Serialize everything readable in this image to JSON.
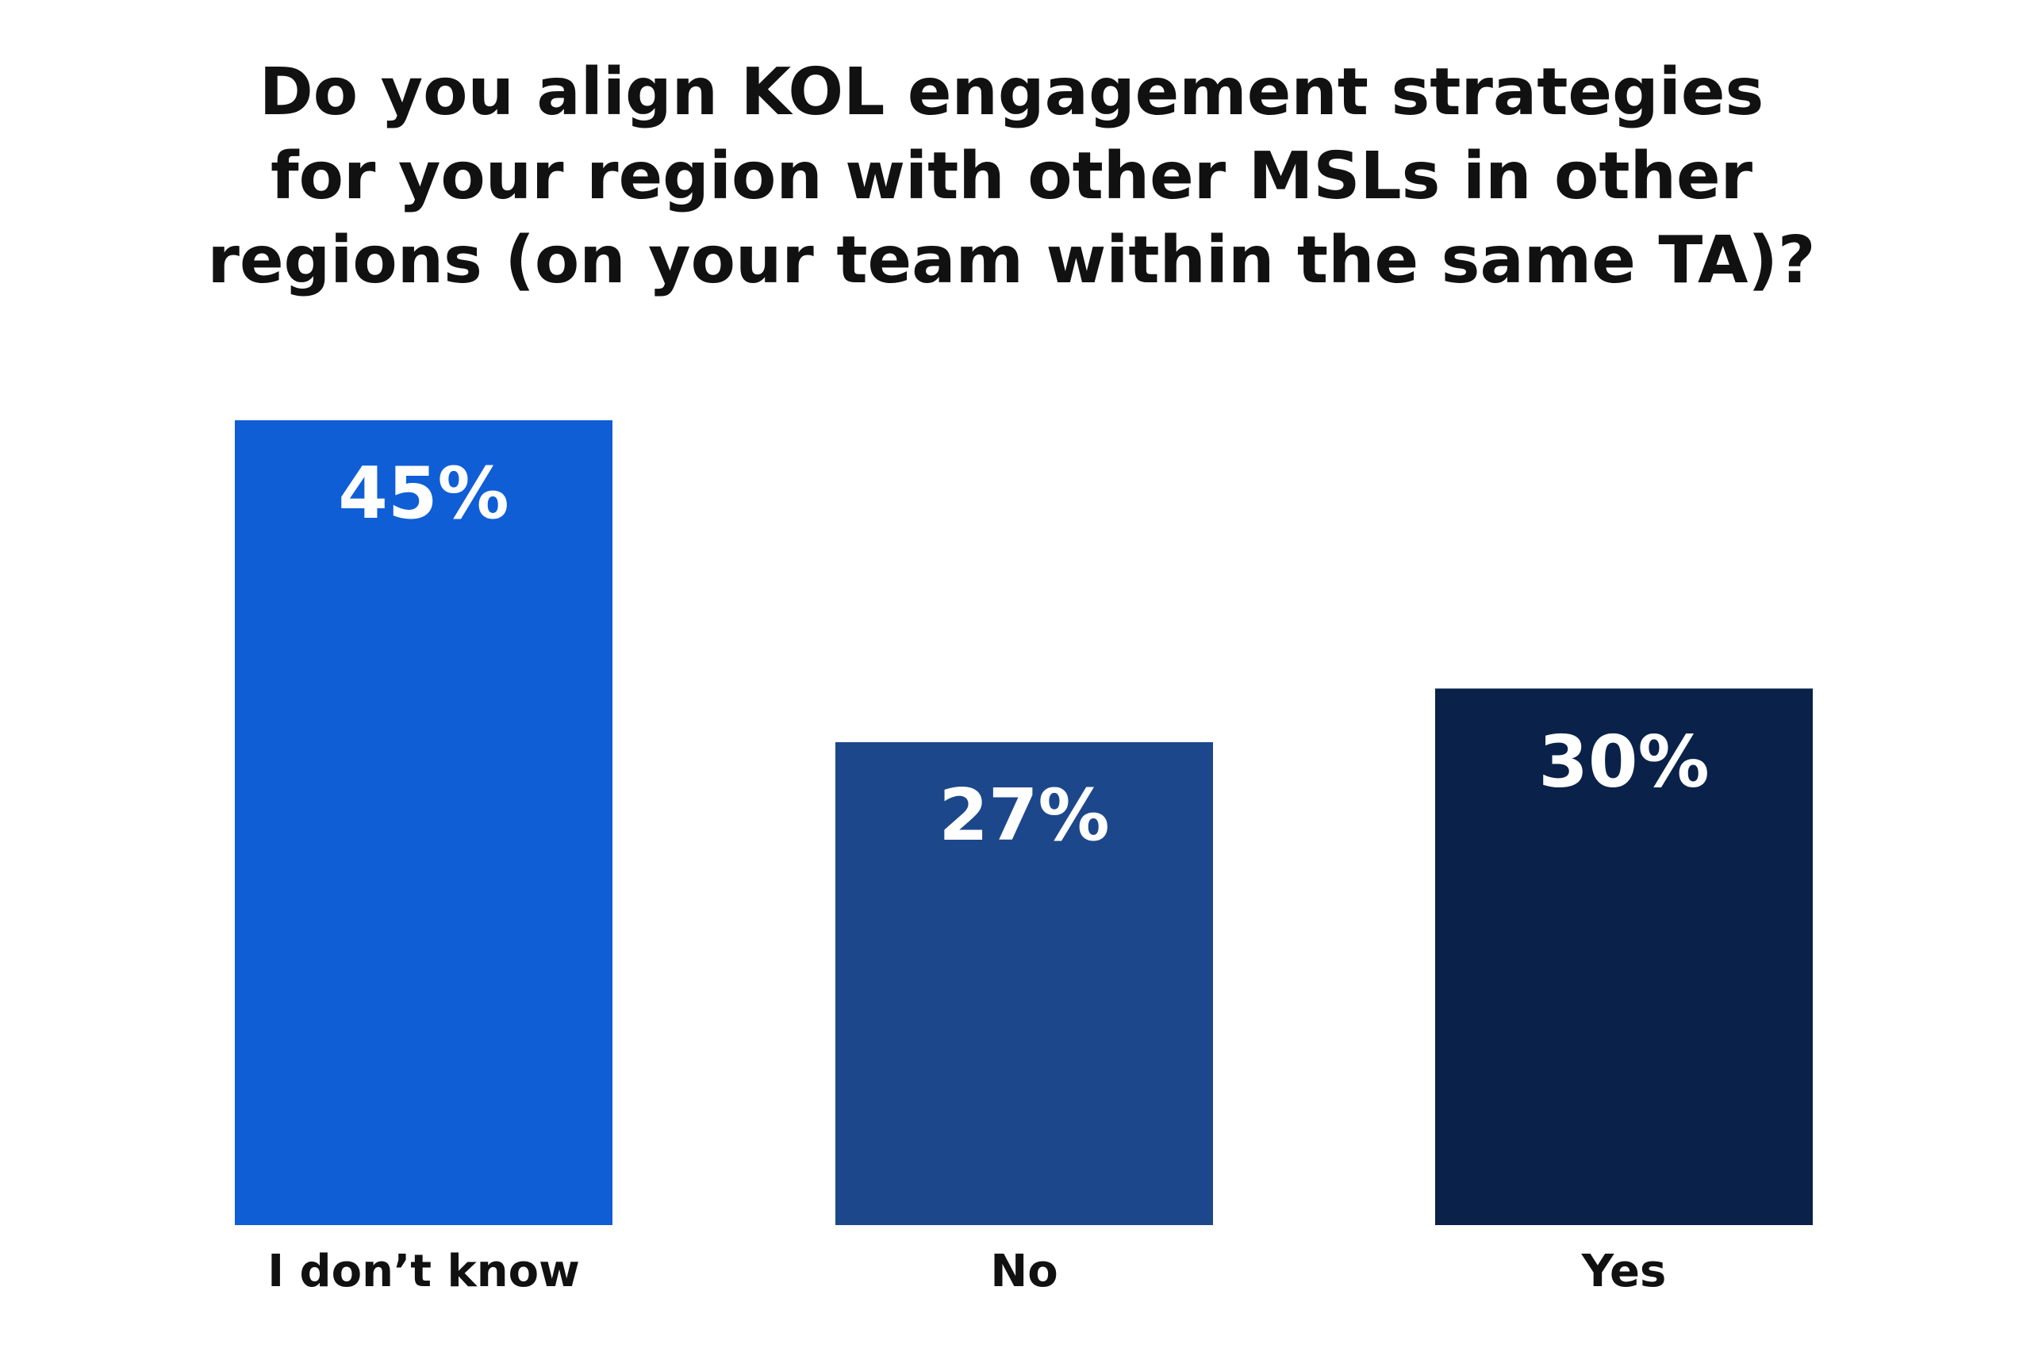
{
  "chart_data": {
    "type": "bar",
    "title_lines": [
      "Do you align KOL engagement strategies",
      "for your region with other MSLs in other",
      "regions (on your team within the same TA)?"
    ],
    "categories": [
      "I don’t know",
      "No",
      "Yes"
    ],
    "values": [
      45,
      27,
      30
    ],
    "value_labels": [
      "45%",
      "27%",
      "30%"
    ],
    "unit": "%",
    "colors": [
      "#0F5ED6",
      "#1C478B",
      "#0A2249"
    ],
    "xlabel": "",
    "ylabel": "",
    "ylim": [
      0,
      45
    ],
    "grid": false,
    "legend": "none"
  }
}
